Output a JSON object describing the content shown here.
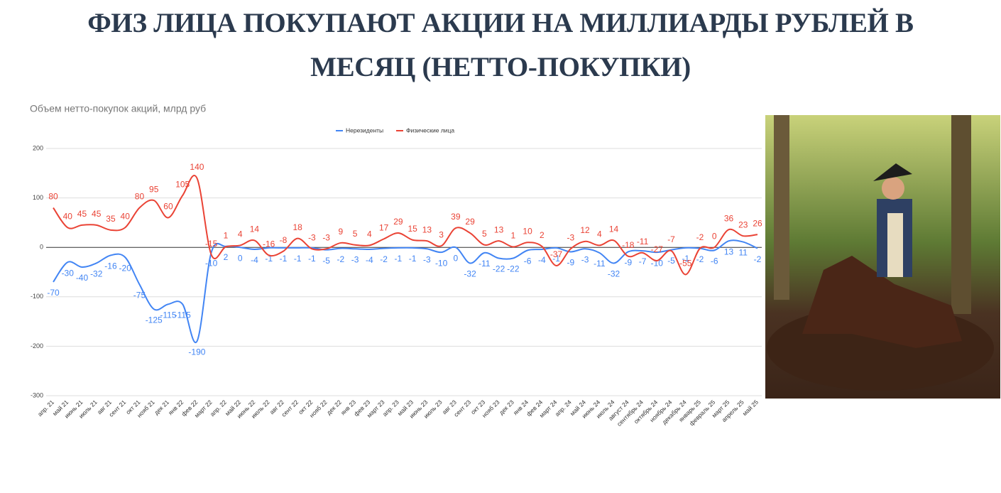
{
  "chart_data": {
    "type": "line",
    "title": "ФИЗ ЛИЦА ПОКУПАЮТ АКЦИИ НА МИЛЛИАРДЫ РУБЛЕЙ В МЕСЯЦ (НЕТТО-ПОКУПКИ)",
    "subtitle": "Объем нетто-покупок акций, млрд руб",
    "categories": [
      "апр. 21",
      "май 21",
      "июнь 21",
      "июль 21",
      "авг 21",
      "сент 21",
      "окт 21",
      "нояб 21",
      "дек 21",
      "янв 22",
      "фев 22",
      "март 22",
      "апр. 22",
      "май 22",
      "июнь 22",
      "июль 22",
      "авг 22",
      "сент 22",
      "окт 22",
      "нояб 22",
      "дек 22",
      "янв 23",
      "фев 23",
      "март 23",
      "апр. 23",
      "май 23",
      "июнь 23",
      "июль 23",
      "авг 23",
      "сент 23",
      "окт 23",
      "нояб 23",
      "дек 23",
      "янв 24",
      "фев 24",
      "март 24",
      "апр. 24",
      "май 24",
      "июнь 24",
      "июль 24",
      "август 24",
      "сентябрь 24",
      "октябрь 24",
      "ноябрь 24",
      "декабрь 24",
      "январь 25",
      "февраль 25",
      "март 25",
      "апрель 25",
      "май 25"
    ],
    "series": [
      {
        "name": "Нерезиденты",
        "color": "#4285f4",
        "values": [
          -70,
          -30,
          -40,
          -32,
          -16,
          -20,
          -75,
          -125,
          -115,
          -115,
          -190,
          -10,
          2,
          0,
          -4,
          -1,
          -1,
          -1,
          -1,
          -5,
          -2,
          -3,
          -4,
          -2,
          -1,
          -1,
          -3,
          -10,
          0,
          -32,
          -11,
          -22,
          -22,
          -6,
          -4,
          -1,
          -9,
          -3,
          -11,
          -32,
          -9,
          -7,
          -10,
          -5,
          -1,
          -2,
          -6,
          13,
          11,
          -2
        ]
      },
      {
        "name": "Физические лица",
        "color": "#ea4335",
        "values": [
          80,
          40,
          45,
          45,
          35,
          40,
          80,
          95,
          60,
          105,
          140,
          -15,
          1,
          4,
          14,
          -16,
          -8,
          18,
          -3,
          -3,
          9,
          5,
          4,
          17,
          29,
          15,
          13,
          3,
          39,
          29,
          5,
          13,
          1,
          10,
          2,
          -37,
          -3,
          12,
          4,
          14,
          -18,
          -11,
          -27,
          -7,
          -55,
          -2,
          0,
          36,
          23,
          26
        ]
      }
    ],
    "ylim": [
      -300,
      200
    ],
    "yticks": [
      -300,
      -200,
      -100,
      0,
      100,
      200
    ],
    "grid": true,
    "legend": "top"
  }
}
